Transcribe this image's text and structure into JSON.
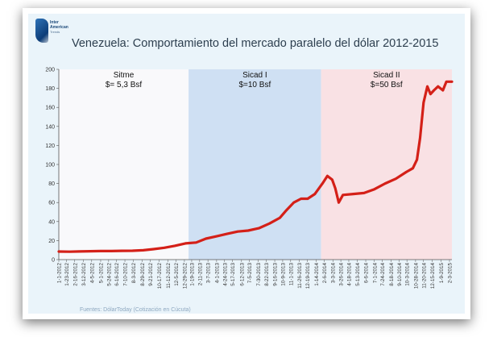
{
  "logo": {
    "line1": "Inter",
    "line2": "American",
    "line3": "Trends"
  },
  "title": "Venezuela: Comportamiento del mercado paralelo del dólar 2012-2015",
  "source": "Fuentes: DólarToday (Cotización en Cúcuta)",
  "colors": {
    "panel": "#eaf4fa",
    "line": "#d42018",
    "sitme_band": "#f9f9fb",
    "sicad1_band": "#cfe0f3",
    "sicad2_band": "#f9e1e4"
  },
  "chart_data": {
    "type": "line",
    "title": "Venezuela: Comportamiento del mercado paralelo del dólar 2012-2015",
    "xlabel": "",
    "ylabel": "",
    "ylim": [
      0,
      200
    ],
    "yticks": [
      0,
      20,
      40,
      60,
      80,
      100,
      120,
      140,
      160,
      180,
      200
    ],
    "grid": false,
    "regions": [
      {
        "name": "Sitme",
        "rate": "$= 5,3 Bsf",
        "start": "1-1-2012",
        "end": "1-10-2013"
      },
      {
        "name": "Sicad I",
        "rate": "$=10 Bsf",
        "start": "1-10-2013",
        "end": "1-28-2014"
      },
      {
        "name": "Sicad II",
        "rate": "$=50 Bsf",
        "start": "1-28-2014",
        "end": "2-10-2015"
      }
    ],
    "xticks": [
      "1-1-2012",
      "1-23-2012",
      "2-16-2012",
      "3-12-2012",
      "4-5-2012",
      "5-1-2012",
      "5-24-2012",
      "6-16-2012",
      "7-10-2012",
      "8-3-2012",
      "8-29-2012",
      "9-21-2012",
      "10-17-2012",
      "11-12-2012",
      "12-5-2012",
      "12-29-2012",
      "1-19-2013",
      "2-11-2013",
      "3-7-2013",
      "4-1-2013",
      "4-24-2013",
      "5-17-2013",
      "6-12-2013",
      "7-5-2013",
      "7-30-2013",
      "8-22-2013",
      "9-16-2013",
      "10-9-2013",
      "11-1-2013",
      "11-26-2013",
      "12-19-2013",
      "1-14-2014",
      "2-6-2014",
      "3-3-2014",
      "3-26-2014",
      "4-18-2014",
      "5-13-2014",
      "6-6-2014",
      "7-1-2014",
      "7-24-2014",
      "8-18-2014",
      "9-10-2014",
      "10-3-2014",
      "10-28-2014",
      "11-20-2014",
      "12-15-2014",
      "1-9-2015",
      "2-3-2015"
    ],
    "series": [
      {
        "x": [
          "1-1-2012",
          "2-1-2012",
          "3-1-2012",
          "4-1-2012",
          "5-1-2012",
          "6-1-2012",
          "7-1-2012",
          "8-1-2012",
          "9-1-2012",
          "10-1-2012",
          "11-1-2012",
          "12-1-2012",
          "1-1-2013",
          "2-1-2013",
          "3-1-2013",
          "4-1-2013",
          "5-1-2013",
          "6-1-2013",
          "7-1-2013",
          "8-1-2013",
          "9-1-2013",
          "10-1-2013",
          "10-20-2013",
          "11-10-2013",
          "12-1-2013",
          "12-20-2013",
          "1-10-2014",
          "2-1-2014",
          "2-15-2014",
          "3-1-2014",
          "3-10-2014",
          "3-20-2014",
          "4-1-2014",
          "5-1-2014",
          "6-1-2014",
          "7-1-2014",
          "8-1-2014",
          "9-1-2014",
          "10-1-2014",
          "10-20-2014",
          "11-1-2014",
          "11-10-2014",
          "11-20-2014",
          "12-1-2014",
          "12-10-2014",
          "12-20-2014",
          "1-1-2015",
          "1-15-2015",
          "1-25-2015",
          "2-10-2015"
        ],
        "values": [
          8.5,
          8.3,
          8.6,
          8.8,
          9.0,
          9.0,
          9.2,
          9.3,
          9.8,
          11,
          12.5,
          14.5,
          17,
          18,
          22,
          24.5,
          27,
          29.5,
          30.5,
          33,
          38,
          44,
          52,
          60,
          64,
          64,
          69,
          80,
          88,
          84,
          75,
          60,
          68,
          69,
          70,
          74,
          80,
          85,
          92,
          96,
          105,
          128,
          165,
          182,
          174,
          178,
          182,
          178,
          187,
          187
        ]
      }
    ]
  }
}
